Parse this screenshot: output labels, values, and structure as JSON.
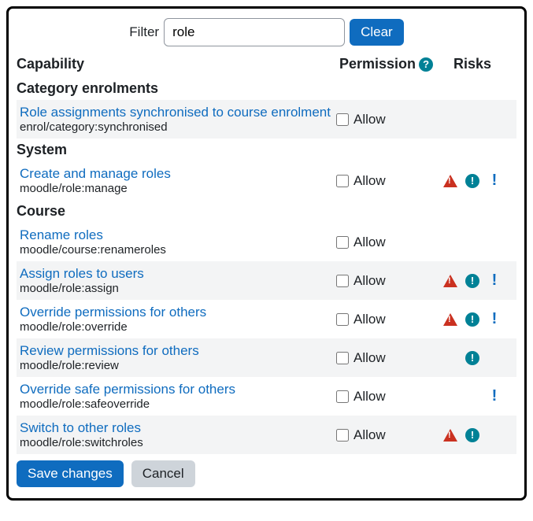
{
  "filter": {
    "label": "Filter",
    "value": "role",
    "clear_label": "Clear"
  },
  "headers": {
    "capability": "Capability",
    "permission": "Permission",
    "risks": "Risks"
  },
  "allow_label": "Allow",
  "sections": [
    {
      "title": "Category enrolments",
      "rows": [
        {
          "label": "Role assignments synchronised to course enrolment",
          "code": "enrol/category:synchronised",
          "shade": true,
          "risks": {
            "tri": false,
            "circ": false,
            "bang": false
          }
        }
      ]
    },
    {
      "title": "System",
      "rows": [
        {
          "label": "Create and manage roles",
          "code": "moodle/role:manage",
          "shade": false,
          "risks": {
            "tri": true,
            "circ": true,
            "bang": true
          }
        }
      ]
    },
    {
      "title": "Course",
      "rows": [
        {
          "label": "Rename roles",
          "code": "moodle/course:renameroles",
          "shade": false,
          "risks": {
            "tri": false,
            "circ": false,
            "bang": false
          }
        },
        {
          "label": "Assign roles to users",
          "code": "moodle/role:assign",
          "shade": true,
          "risks": {
            "tri": true,
            "circ": true,
            "bang": true
          }
        },
        {
          "label": "Override permissions for others",
          "code": "moodle/role:override",
          "shade": false,
          "risks": {
            "tri": true,
            "circ": true,
            "bang": true
          }
        },
        {
          "label": "Review permissions for others",
          "code": "moodle/role:review",
          "shade": true,
          "risks": {
            "tri": false,
            "circ": true,
            "bang": false
          }
        },
        {
          "label": "Override safe permissions for others",
          "code": "moodle/role:safeoverride",
          "shade": false,
          "risks": {
            "tri": false,
            "circ": false,
            "bang": true
          }
        },
        {
          "label": "Switch to other roles",
          "code": "moodle/role:switchroles",
          "shade": true,
          "risks": {
            "tri": true,
            "circ": true,
            "bang": false
          }
        }
      ]
    }
  ],
  "actions": {
    "save": "Save changes",
    "cancel": "Cancel"
  },
  "colors": {
    "primary": "#0f6cbf",
    "teal": "#008196",
    "danger": "#ca3120",
    "shade": "#f3f4f5"
  }
}
